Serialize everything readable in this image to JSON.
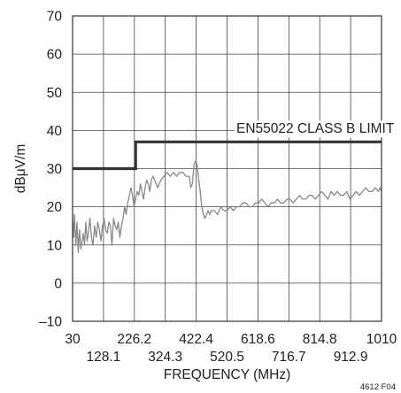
{
  "chart_data": {
    "type": "line",
    "xlabel": "FREQUENCY (MHz)",
    "ylabel": "dBμV/m",
    "xlim": [
      30,
      1010
    ],
    "ylim": [
      -10,
      70
    ],
    "grid": true,
    "x_ticks_top_row": [
      "30",
      "226.2",
      "422.4",
      "618.6",
      "814.8",
      "1010"
    ],
    "x_ticks_bottom_row": [
      "128.1",
      "324.3",
      "520.5",
      "716.7",
      "912.9"
    ],
    "y_ticks": [
      "–10",
      "0",
      "10",
      "20",
      "30",
      "40",
      "50",
      "60",
      "70"
    ],
    "figure_id": "4612 F04",
    "annotations": [
      {
        "text": "EN55022 CLASS B LIMIT",
        "x": 600,
        "y": 40.5
      }
    ],
    "series": [
      {
        "name": "EN55022 CLASS B LIMIT",
        "x": [
          30,
          230,
          230,
          1010
        ],
        "y": [
          30,
          30,
          37,
          37
        ]
      },
      {
        "x": [
          30,
          33,
          36,
          40,
          44,
          48,
          52,
          56,
          60,
          64,
          68,
          72,
          76,
          80,
          85,
          90,
          95,
          100,
          105,
          110,
          115,
          120,
          125,
          130,
          135,
          140,
          145,
          150,
          155,
          160,
          165,
          170,
          175,
          180,
          185,
          190,
          195,
          200,
          205,
          210,
          215,
          220,
          225,
          230,
          235,
          240,
          245,
          250,
          255,
          260,
          265,
          270,
          275,
          280,
          285,
          290,
          295,
          300,
          310,
          320,
          330,
          340,
          350,
          360,
          370,
          380,
          390,
          400,
          405,
          410,
          415,
          420,
          425,
          430,
          435,
          440,
          445,
          450,
          455,
          460,
          465,
          470,
          480,
          490,
          500,
          510,
          520,
          530,
          540,
          550,
          560,
          570,
          580,
          590,
          600,
          610,
          620,
          630,
          640,
          650,
          660,
          670,
          680,
          690,
          700,
          710,
          720,
          730,
          740,
          750,
          760,
          770,
          780,
          790,
          800,
          810,
          820,
          830,
          840,
          850,
          860,
          870,
          880,
          890,
          900,
          910,
          920,
          930,
          940,
          950,
          960,
          970,
          980,
          990,
          1000,
          1005,
          1010
        ],
        "y": [
          17,
          12,
          18,
          10,
          16,
          8,
          14,
          9,
          11,
          13,
          10,
          16,
          11,
          13,
          17,
          12,
          10,
          15,
          12,
          16,
          14,
          11,
          15,
          17,
          14,
          13,
          16,
          15,
          10,
          17,
          15,
          14,
          16,
          12,
          15,
          17,
          20,
          18,
          21,
          23,
          25,
          23,
          20,
          22,
          24,
          23,
          26,
          24,
          22,
          25,
          27,
          26,
          24,
          27,
          28,
          27,
          26,
          25,
          27,
          28,
          29,
          28,
          29,
          28,
          29,
          29,
          28,
          28,
          25,
          26,
          31,
          32,
          31,
          27,
          24,
          20,
          18,
          17,
          18,
          19,
          18,
          19,
          19,
          18,
          20,
          19,
          19,
          20,
          19,
          20,
          20,
          21,
          21,
          20,
          20,
          21,
          21,
          22,
          21,
          20,
          21,
          21,
          22,
          21,
          21,
          22,
          22,
          21,
          22,
          23,
          22,
          22,
          23,
          23,
          22,
          23,
          24,
          23,
          22,
          24,
          23,
          24,
          23,
          23,
          24,
          22,
          23,
          24,
          23,
          24,
          25,
          24,
          24,
          25,
          24,
          25,
          24
        ]
      }
    ]
  }
}
